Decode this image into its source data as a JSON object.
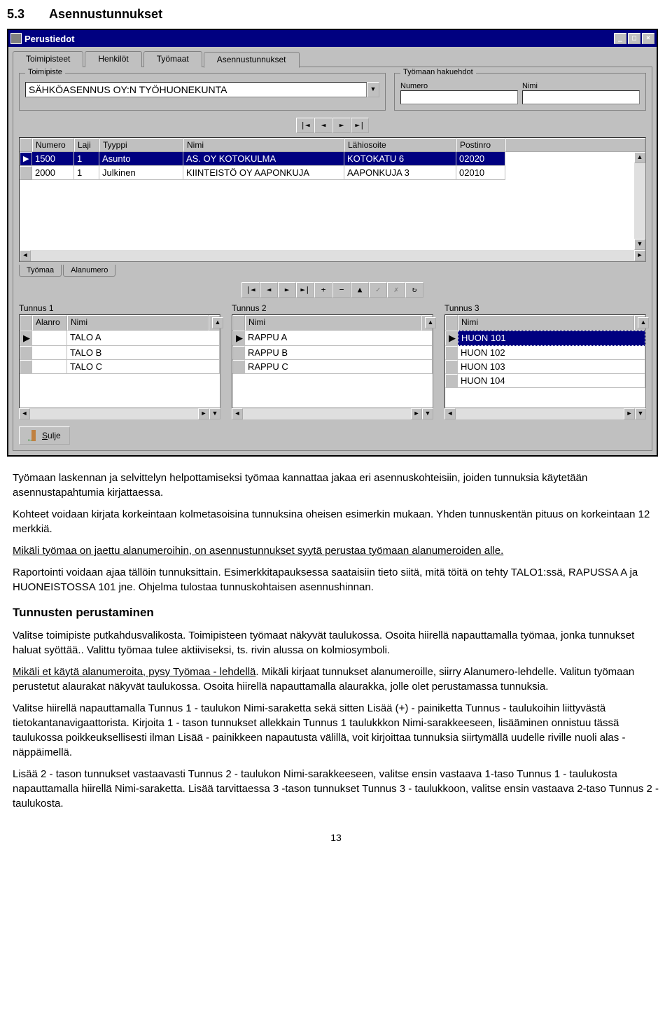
{
  "section": {
    "num": "5.3",
    "title": "Asennustunnukset"
  },
  "window": {
    "title": "Perustiedot",
    "tabs": [
      "Toimipisteet",
      "Henkilöt",
      "Työmaat",
      "Asennustunnukset"
    ],
    "activeTab": 3,
    "toimipiste": {
      "legend": "Toimipiste",
      "value": "SÄHKÖASENNUS OY:N TYÖHUONEKUNTA"
    },
    "haku": {
      "legend": "Työmaan hakuehdot",
      "numero_lbl": "Numero",
      "nimi_lbl": "Nimi"
    },
    "nav_glyphs": {
      "first": "|◄",
      "prev": "◄",
      "next": "►",
      "last": "►|",
      "plus": "+",
      "minus": "−",
      "edit": "▲",
      "ok": "✓",
      "cancel": "✗",
      "refresh": "↻"
    },
    "main_grid": {
      "cols": [
        "Numero",
        "Laji",
        "Tyyppi",
        "Nimi",
        "Lähiosoite",
        "Postinro"
      ],
      "widths": [
        60,
        36,
        120,
        230,
        160,
        70
      ],
      "rows": [
        [
          "1500",
          "1",
          "Asunto",
          "AS. OY KOTOKULMA",
          "KOTOKATU 6",
          "02020"
        ],
        [
          "2000",
          "1",
          "Julkinen",
          "KIINTEISTÖ OY AAPONKUJA",
          "AAPONKUJA 3",
          "02010"
        ]
      ],
      "selected": 0
    },
    "bottom_tabs": [
      "Työmaa",
      "Alanumero"
    ],
    "tunnus": {
      "labels": [
        "Tunnus 1",
        "Tunnus 2",
        "Tunnus 3"
      ],
      "t1": {
        "head": [
          "Alanro",
          "Nimi"
        ],
        "rows": [
          [
            "",
            "TALO A"
          ],
          [
            "",
            "TALO B"
          ],
          [
            "",
            "TALO C"
          ]
        ]
      },
      "t2": {
        "head": [
          "Nimi"
        ],
        "rows": [
          [
            "RAPPU A"
          ],
          [
            "RAPPU B"
          ],
          [
            "RAPPU C"
          ]
        ]
      },
      "t3": {
        "head": [
          "Nimi"
        ],
        "rows": [
          [
            "HUON 101"
          ],
          [
            "HUON 102"
          ],
          [
            "HUON 103"
          ],
          [
            "HUON 104"
          ]
        ],
        "selected": 0
      }
    },
    "close": "Sulje"
  },
  "doc": {
    "p1": "Työmaan laskennan ja selvittelyn helpottamiseksi työmaa kannattaa jakaa eri asennuskohteisiin, joiden tunnuksia käytetään asennustapahtumia kirjattaessa.",
    "p2": "Kohteet voidaan kirjata korkeintaan kolmetasoisina tunnuksina oheisen esimerkin mukaan. Yhden tunnuskentän pituus on korkeintaan 12 merkkiä.",
    "p3": "Mikäli työmaa on jaettu alanumeroihin, on asennustunnukset syytä perustaa työmaan alanumeroiden alle.",
    "p4": "Raportointi voidaan ajaa tällöin tunnuksittain. Esimerkkitapauksessa saataisiin tieto siitä, mitä töitä on tehty TALO1:ssä, RAPUSSA A ja HUONEISTOSSA 101 jne. Ohjelma tulostaa tunnuskohtaisen asennushinnan.",
    "h1": "Tunnusten perustaminen",
    "p5": "Valitse toimipiste putkahdusvalikosta. Toimipisteen työmaat näkyvät taulukossa. Osoita hiirellä napauttamalla työmaa, jonka tunnukset haluat syöttää.. Valittu työmaa tulee aktiiviseksi, ts. rivin alussa on kolmiosymboli.",
    "p6a": "Mikäli et käytä alanumeroita, pysy Työmaa - lehdellä",
    "p6b": ". Mikäli kirjaat tunnukset alanumeroille, siirry Alanumero-lehdelle. Valitun työmaan perustetut alaurakat näkyvät taulukossa. Osoita hiirellä napauttamalla alaurakka, jolle olet perustamassa tunnuksia.",
    "p7": "Valitse hiirellä napauttamalla Tunnus 1 - taulukon Nimi-saraketta sekä sitten Lisää (+) - painiketta Tunnus - taulukoihin liittyvästä tietokantanavigaattorista. Kirjoita 1 - tason tunnukset allekkain Tunnus 1 taulukkkon Nimi-sarakkeeseen, lisääminen onnistuu tässä taulukossa poikkeuksellisesti ilman Lisää - painikkeen napautusta välillä, voit kirjoittaa tunnuksia siirtymällä uudelle riville nuoli alas - näppäimellä.",
    "p8": "Lisää 2 - tason tunnukset vastaavasti Tunnus 2 - taulukon Nimi-sarakkeeseen, valitse ensin vastaava 1-taso Tunnus 1 - taulukosta napauttamalla hiirellä Nimi-saraketta. Lisää tarvittaessa 3 -tason tunnukset Tunnus 3 - taulukkoon, valitse ensin vastaava 2-taso Tunnus 2 - taulukosta.",
    "pagenum": "13"
  }
}
